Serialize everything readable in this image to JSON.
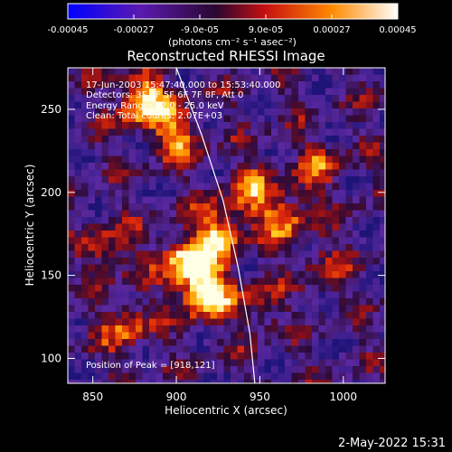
{
  "colorbar": {
    "ticks": [
      "-0.00045",
      "-0.00027",
      "-9.0e-05",
      "9.0e-05",
      "0.00027",
      "0.00045"
    ],
    "units": "(photons cm⁻² s⁻¹ asec⁻²)",
    "colors": [
      "#0000ff",
      "#5a1ab0",
      "#3a0a40",
      "#c81010",
      "#ff8a00",
      "#ffffff"
    ]
  },
  "chart_data": {
    "type": "heatmap",
    "title": "Reconstructed RHESSI Image",
    "xlabel": "Heliocentric X (arcsec)",
    "ylabel": "Heliocentric Y (arcsec)",
    "xlim": [
      835,
      1025
    ],
    "ylim": [
      85,
      275
    ],
    "x_ticks": [
      850,
      900,
      950,
      1000
    ],
    "y_ticks": [
      100,
      150,
      200,
      250
    ],
    "info_lines": [
      "17-Jun-2003 15:47:40.000 to 15:53:40.000",
      "Detectors: 3F 4F 5F 6F 7F 8F, Att 0",
      "Energy Range: 12.0 - 25.0 keV",
      "Clean:      Total counts: 2.07E+03"
    ],
    "peak_label": "Position of Peak = [918,121]",
    "peak": [
      918,
      121
    ],
    "limb_points": [
      [
        900,
        275
      ],
      [
        915,
        235
      ],
      [
        928,
        195
      ],
      [
        937,
        155
      ],
      [
        944,
        115
      ],
      [
        947,
        85
      ]
    ],
    "hotspots": [
      {
        "x": 918,
        "y": 140,
        "value": 1.0
      },
      {
        "x": 905,
        "y": 158,
        "value": 0.8
      },
      {
        "x": 925,
        "y": 175,
        "value": 0.7
      },
      {
        "x": 880,
        "y": 255,
        "value": 0.85
      },
      {
        "x": 900,
        "y": 235,
        "value": 0.6
      },
      {
        "x": 945,
        "y": 200,
        "value": 0.5
      },
      {
        "x": 965,
        "y": 185,
        "value": 0.55
      },
      {
        "x": 860,
        "y": 165,
        "value": 0.45
      },
      {
        "x": 870,
        "y": 120,
        "value": 0.5
      },
      {
        "x": 985,
        "y": 215,
        "value": 0.4
      },
      {
        "x": 990,
        "y": 155,
        "value": 0.3
      },
      {
        "x": 950,
        "y": 130,
        "value": 0.35
      }
    ]
  },
  "footer": {
    "date": "2-May-2022 15:31"
  }
}
